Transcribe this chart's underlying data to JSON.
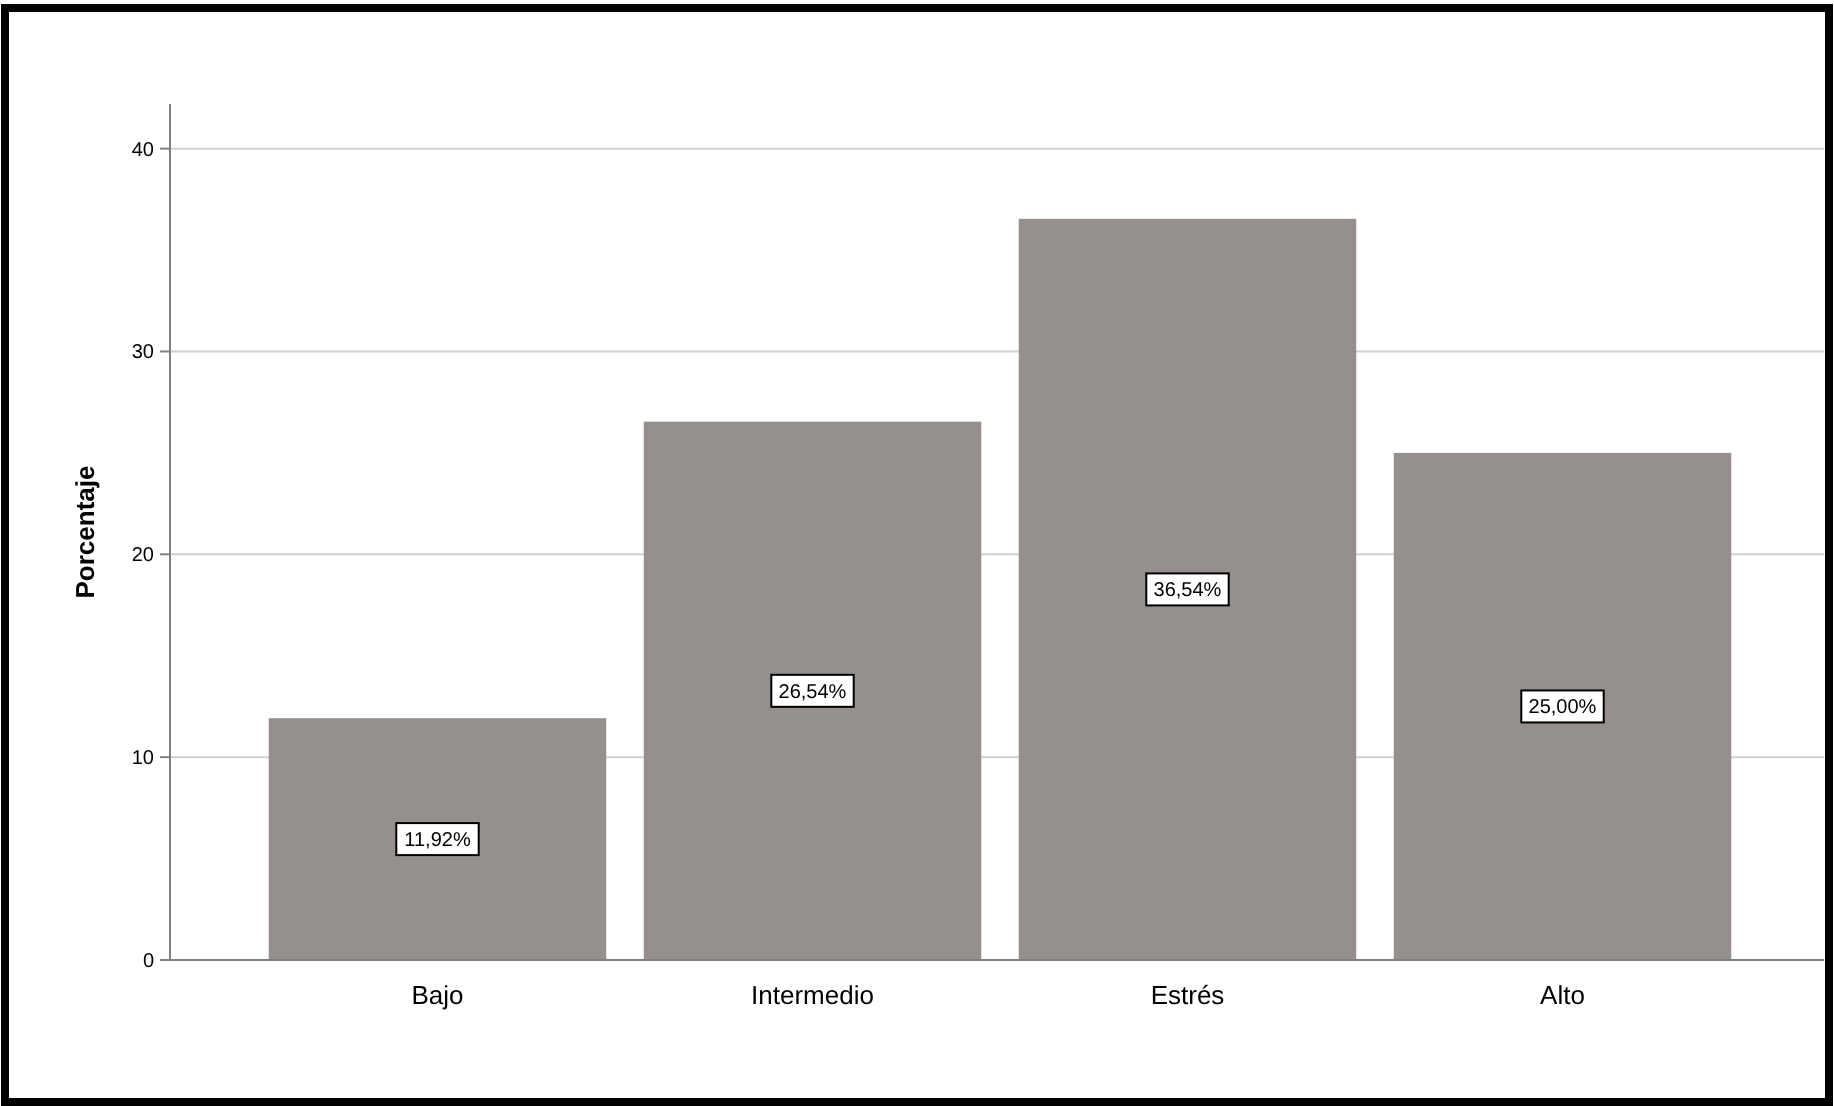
{
  "chart_data": {
    "type": "bar",
    "ylabel": "Porcentaje",
    "categories": [
      "Bajo",
      "Intermedio",
      "Estrés",
      "Alto"
    ],
    "values": [
      11.92,
      26.54,
      36.54,
      25.0
    ],
    "value_labels": [
      "11,92%",
      "26,54%",
      "36,54%",
      "25,00%"
    ],
    "color": "#958f8e",
    "ylim": [
      0,
      42.2
    ],
    "yticks": [
      0,
      10,
      20,
      30,
      40
    ],
    "grid": "y"
  }
}
